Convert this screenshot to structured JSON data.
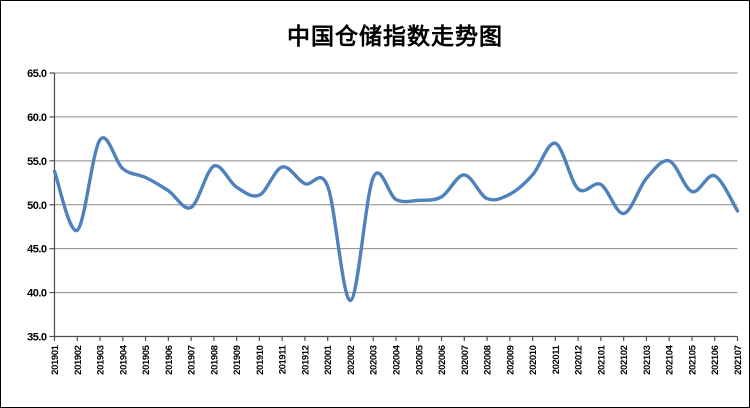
{
  "chart_data": {
    "type": "line",
    "title": "中国仓储指数走势图",
    "categories": [
      "201901",
      "201902",
      "201903",
      "201904",
      "201905",
      "201906",
      "201907",
      "201908",
      "201909",
      "201910",
      "201911",
      "201912",
      "202001",
      "202002",
      "202003",
      "202004",
      "202005",
      "202006",
      "202007",
      "202008",
      "202009",
      "202010",
      "202011",
      "202012",
      "202101",
      "202102",
      "202103",
      "202104",
      "202105",
      "202106",
      "202107"
    ],
    "values": [
      53.8,
      47.1,
      57.4,
      54.1,
      53.1,
      51.6,
      49.7,
      54.4,
      52.0,
      51.1,
      54.3,
      52.4,
      52.1,
      39.1,
      53.1,
      50.6,
      50.5,
      50.9,
      53.4,
      50.7,
      51.2,
      53.4,
      57.0,
      51.8,
      52.3,
      49.0,
      53.0,
      55.0,
      51.5,
      53.3,
      49.3
    ],
    "xlabel": "",
    "ylabel": "",
    "ylim": [
      35.0,
      65.0
    ],
    "ytick_step": 5.0,
    "ytick_labels": [
      "65.0",
      "60.0",
      "55.0",
      "50.0",
      "45.0",
      "40.0",
      "35.0"
    ],
    "grid": "horizontal",
    "legend": "none",
    "smooth": true,
    "colors": {
      "line": "#4F81BD",
      "gridline": "#8c8c8c",
      "axis": "#4d4d4d",
      "text": "#000000",
      "background": "#ffffff"
    }
  }
}
